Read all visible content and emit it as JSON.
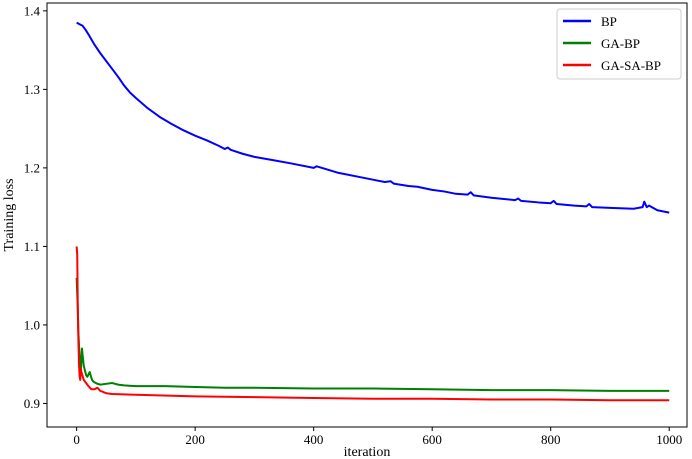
{
  "chart_data": {
    "type": "line",
    "title": "",
    "xlabel": "iteration",
    "ylabel": "Training loss",
    "xlim": [
      -50,
      1030
    ],
    "ylim": [
      0.87,
      1.41
    ],
    "xticks": [
      0,
      200,
      400,
      600,
      800,
      1000
    ],
    "xtick_labels": [
      "0",
      "200",
      "400",
      "600",
      "800",
      "1000"
    ],
    "yticks": [
      0.9,
      1.0,
      1.1,
      1.2,
      1.3,
      1.4
    ],
    "ytick_labels": [
      "0.9",
      "1.0",
      "1.1",
      "1.2",
      "1.3",
      "1.4"
    ],
    "grid": false,
    "legend_position": "top-right",
    "series": [
      {
        "name": "BP",
        "color": "#0000ff",
        "x": [
          0,
          5,
          10,
          15,
          20,
          30,
          40,
          50,
          60,
          70,
          80,
          90,
          100,
          120,
          140,
          160,
          180,
          200,
          220,
          240,
          250,
          255,
          260,
          280,
          300,
          330,
          360,
          400,
          405,
          440,
          480,
          500,
          520,
          530,
          535,
          560,
          575,
          600,
          620,
          640,
          660,
          665,
          670,
          700,
          740,
          745,
          750,
          780,
          800,
          805,
          810,
          840,
          860,
          865,
          870,
          900,
          940,
          955,
          958,
          962,
          966,
          980,
          1000
        ],
        "y": [
          1.385,
          1.383,
          1.381,
          1.376,
          1.37,
          1.357,
          1.346,
          1.336,
          1.326,
          1.316,
          1.305,
          1.296,
          1.289,
          1.276,
          1.265,
          1.256,
          1.248,
          1.241,
          1.235,
          1.228,
          1.224,
          1.226,
          1.223,
          1.218,
          1.214,
          1.21,
          1.206,
          1.2,
          1.202,
          1.194,
          1.188,
          1.185,
          1.182,
          1.183,
          1.18,
          1.177,
          1.176,
          1.172,
          1.17,
          1.167,
          1.166,
          1.169,
          1.165,
          1.162,
          1.159,
          1.161,
          1.158,
          1.156,
          1.155,
          1.158,
          1.154,
          1.152,
          1.151,
          1.154,
          1.15,
          1.149,
          1.148,
          1.15,
          1.157,
          1.15,
          1.152,
          1.146,
          1.143
        ]
      },
      {
        "name": "GA-BP",
        "color": "#008000",
        "x": [
          0,
          1,
          2,
          3,
          4,
          5,
          6,
          7,
          8,
          9,
          10,
          12,
          14,
          16,
          18,
          20,
          22,
          24,
          26,
          28,
          30,
          35,
          40,
          50,
          60,
          70,
          80,
          100,
          150,
          200,
          250,
          300,
          400,
          500,
          600,
          700,
          800,
          900,
          1000
        ],
        "y": [
          1.06,
          1.04,
          1.02,
          0.99,
          0.975,
          0.96,
          0.945,
          0.94,
          0.955,
          0.97,
          0.962,
          0.948,
          0.942,
          0.936,
          0.934,
          0.937,
          0.94,
          0.935,
          0.93,
          0.928,
          0.927,
          0.925,
          0.924,
          0.925,
          0.926,
          0.924,
          0.923,
          0.922,
          0.922,
          0.921,
          0.92,
          0.92,
          0.919,
          0.919,
          0.918,
          0.917,
          0.917,
          0.916,
          0.916
        ]
      },
      {
        "name": "GA-SA-BP",
        "color": "#ff0000",
        "x": [
          0,
          1,
          2,
          3,
          4,
          5,
          6,
          7,
          8,
          10,
          12,
          14,
          16,
          18,
          20,
          25,
          30,
          35,
          40,
          50,
          60,
          100,
          200,
          300,
          400,
          500,
          600,
          700,
          800,
          900,
          1000
        ],
        "y": [
          1.1,
          1.09,
          1.02,
          0.98,
          0.95,
          0.935,
          0.93,
          0.945,
          0.94,
          0.935,
          0.93,
          0.928,
          0.926,
          0.924,
          0.922,
          0.918,
          0.918,
          0.92,
          0.916,
          0.913,
          0.912,
          0.911,
          0.909,
          0.908,
          0.907,
          0.906,
          0.906,
          0.905,
          0.905,
          0.904,
          0.904
        ]
      }
    ]
  }
}
